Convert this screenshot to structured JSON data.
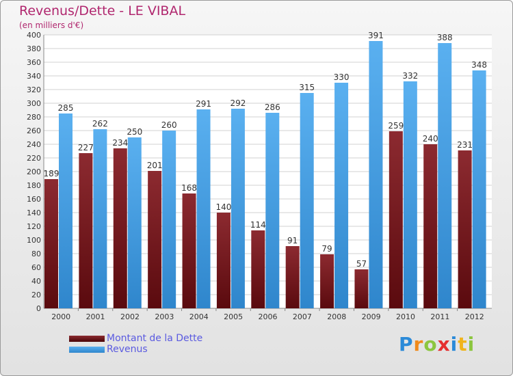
{
  "title": "Revenus/Dette - LE VIBAL",
  "subtitle": "(en milliers d'€)",
  "colors": {
    "dette": "#7b1a1f",
    "revenus": "#4aa3e8",
    "title": "#b0266e",
    "legend_text": "#5a5ae0"
  },
  "logo": {
    "text": "Proxiti",
    "letters": [
      {
        "ch": "P",
        "color": "#2b8ad8"
      },
      {
        "ch": "r",
        "color": "#f08a1c"
      },
      {
        "ch": "o",
        "color": "#8cc63f"
      },
      {
        "ch": "x",
        "color": "#e52f2f"
      },
      {
        "ch": "i",
        "color": "#2b8ad8"
      },
      {
        "ch": "t",
        "color": "#f0b41c"
      },
      {
        "ch": "i",
        "color": "#8cc63f"
      }
    ]
  },
  "chart_data": {
    "type": "bar",
    "title": "Revenus/Dette - LE VIBAL",
    "subtitle": "(en milliers d'€)",
    "categories": [
      "2000",
      "2001",
      "2002",
      "2003",
      "2004",
      "2005",
      "2006",
      "2007",
      "2008",
      "2009",
      "2010",
      "2011",
      "2012"
    ],
    "series": [
      {
        "name": "Montant de la Dette",
        "values": [
          189,
          227,
          234,
          201,
          168,
          140,
          114,
          91,
          79,
          57,
          259,
          240,
          231
        ],
        "color": "#7b1a1f"
      },
      {
        "name": "Revenus",
        "values": [
          285,
          262,
          250,
          260,
          291,
          292,
          286,
          315,
          330,
          391,
          332,
          388,
          348
        ],
        "color": "#4aa3e8"
      }
    ],
    "ylim": [
      0,
      400
    ],
    "ytick_step": 20,
    "grid": true,
    "legend_position": "bottom-left"
  }
}
